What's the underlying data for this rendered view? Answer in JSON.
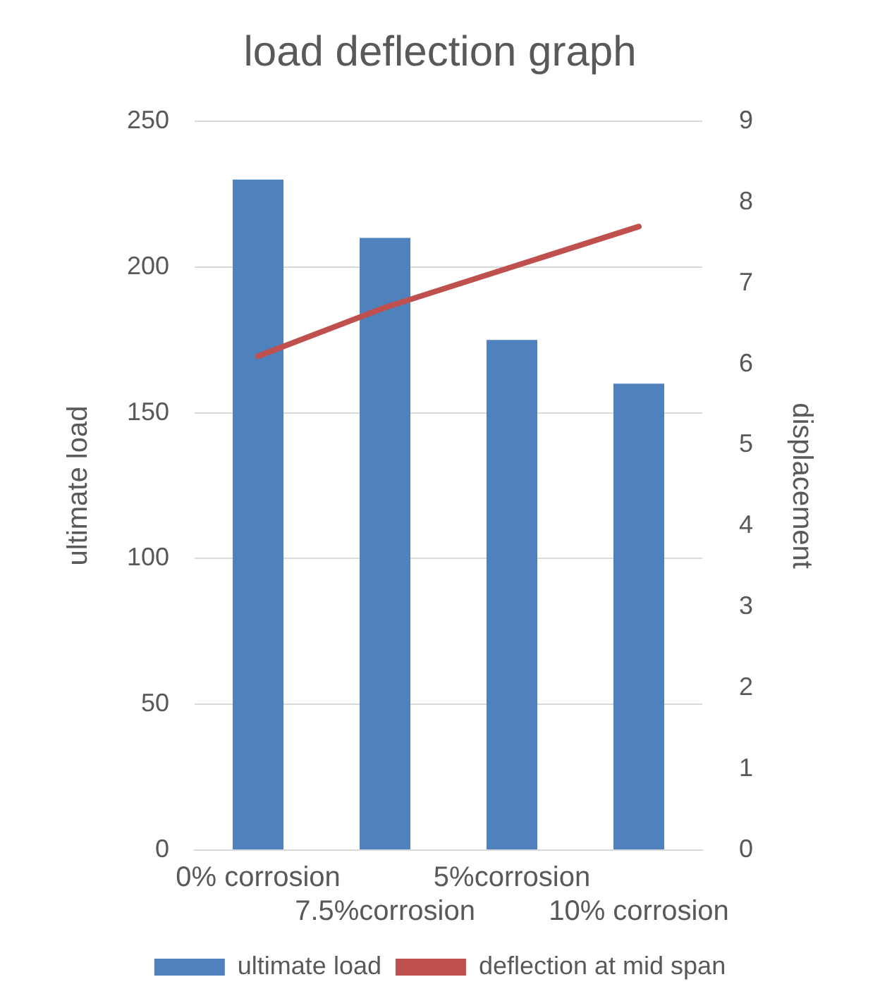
{
  "chart_data": {
    "type": "bar",
    "title": "load deflection graph",
    "ylabel": "ultimate load",
    "y2label": "displacement",
    "categories": [
      "0% corrosion",
      "7.5%corrosion",
      "5%corrosion",
      "10% corrosion"
    ],
    "series": [
      {
        "name": "ultimate load",
        "color": "#4f81bd",
        "values": [
          230,
          210,
          175,
          160
        ]
      },
      {
        "name": "deflection at mid span",
        "type": "line",
        "color": "#c0504d",
        "axis": "y2",
        "values": [
          6.1,
          6.7,
          7.2,
          7.7
        ]
      }
    ],
    "ylim": [
      0,
      250
    ],
    "yticks": [
      0,
      50,
      100,
      150,
      200,
      250
    ],
    "y2lim": [
      0,
      9
    ],
    "y2ticks": [
      0,
      1,
      2,
      3,
      4,
      5,
      6,
      7,
      8,
      9
    ],
    "grid": "y",
    "legend": "bottom",
    "marker": "none"
  }
}
